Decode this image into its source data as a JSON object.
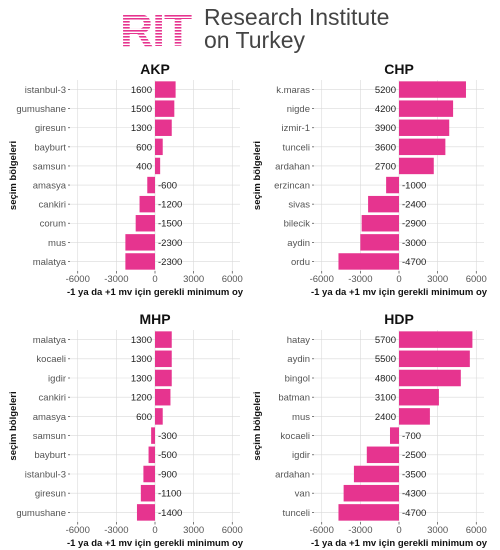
{
  "header": {
    "logo_text": "RIT",
    "org_line1": "Research Institute",
    "org_line2": "on Turkey",
    "brand_color": "#e6348f"
  },
  "chart_data": [
    {
      "type": "bar",
      "orientation": "horizontal",
      "title": "AKP",
      "categories": [
        "istanbul-3",
        "gumushane",
        "giresun",
        "bayburt",
        "samsun",
        "amasya",
        "cankiri",
        "corum",
        "mus",
        "malatya"
      ],
      "values": [
        1600,
        1500,
        1300,
        600,
        400,
        -600,
        -1200,
        -1500,
        -2300,
        -2300
      ],
      "xlabel": "-1 ya da +1 mv için gerekli minimum oy",
      "ylabel": "seçim bölgeleri",
      "xticks": [
        -6000,
        -3000,
        0,
        3000,
        6000
      ],
      "xlim": [
        -6600,
        6600
      ],
      "bar_color": "#e6348f",
      "grid": true
    },
    {
      "type": "bar",
      "orientation": "horizontal",
      "title": "CHP",
      "categories": [
        "k.maras",
        "nigde",
        "izmir-1",
        "tunceli",
        "ardahan",
        "erzincan",
        "sivas",
        "bilecik",
        "aydin",
        "ordu"
      ],
      "values": [
        5200,
        4200,
        3900,
        3600,
        2700,
        -1000,
        -2400,
        -2900,
        -3000,
        -4700
      ],
      "xlabel": "-1 ya da +1 mv için gerekli minimum oy",
      "ylabel": "seçim bölgeleri",
      "xticks": [
        -6000,
        -3000,
        0,
        3000,
        6000
      ],
      "xlim": [
        -6600,
        6600
      ],
      "bar_color": "#e6348f",
      "grid": true
    },
    {
      "type": "bar",
      "orientation": "horizontal",
      "title": "MHP",
      "categories": [
        "malatya",
        "kocaeli",
        "igdir",
        "cankiri",
        "amasya",
        "samsun",
        "bayburt",
        "istanbul-3",
        "giresun",
        "gumushane"
      ],
      "values": [
        1300,
        1300,
        1300,
        1200,
        600,
        -300,
        -500,
        -900,
        -1100,
        -1400
      ],
      "xlabel": "-1 ya da +1 mv için gerekli minimum oy",
      "ylabel": "seçim bölgeleri",
      "xticks": [
        -6000,
        -3000,
        0,
        3000,
        6000
      ],
      "xlim": [
        -6600,
        6600
      ],
      "bar_color": "#e6348f",
      "grid": true
    },
    {
      "type": "bar",
      "orientation": "horizontal",
      "title": "HDP",
      "categories": [
        "hatay",
        "aydin",
        "bingol",
        "batman",
        "mus",
        "kocaeli",
        "igdir",
        "ardahan",
        "van",
        "tunceli"
      ],
      "values": [
        5700,
        5500,
        4800,
        3100,
        2400,
        -700,
        -2500,
        -3500,
        -4300,
        -4700
      ],
      "xlabel": "-1 ya da +1 mv için gerekli minimum oy",
      "ylabel": "seçim bölgeleri",
      "xticks": [
        -6000,
        -3000,
        0,
        3000,
        6000
      ],
      "xlim": [
        -6600,
        6600
      ],
      "bar_color": "#e6348f",
      "grid": true
    }
  ]
}
